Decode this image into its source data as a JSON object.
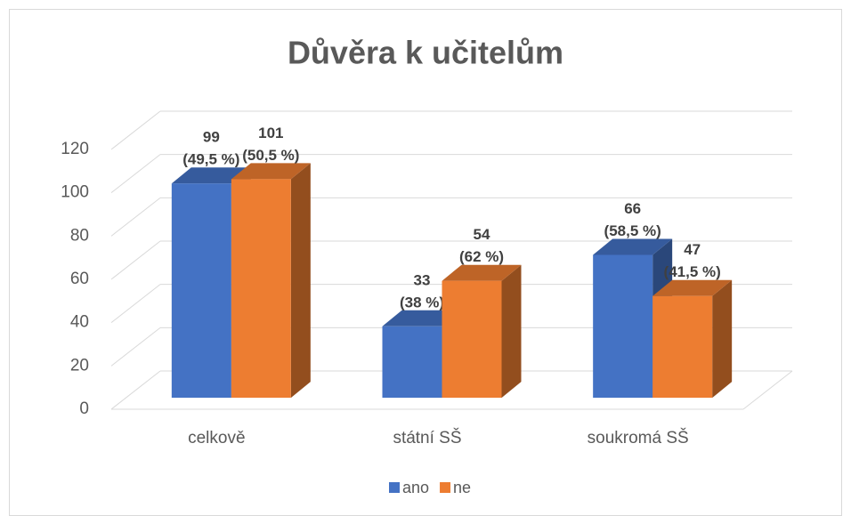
{
  "chart_data": {
    "type": "bar3d",
    "title": "Důvěra k učitelům",
    "categories": [
      "celkově",
      "státní SŠ",
      "soukromá SŠ"
    ],
    "series": [
      {
        "name": "ano",
        "color": "#4472c4",
        "values": [
          99,
          33,
          66
        ],
        "value_labels": [
          [
            "99",
            "(49,5 %)"
          ],
          [
            "33",
            "(38 %)"
          ],
          [
            "66",
            "(58,5 %)"
          ]
        ]
      },
      {
        "name": "ne",
        "color": "#ed7d31",
        "values": [
          101,
          54,
          47
        ],
        "value_labels": [
          [
            "101",
            "(50,5 %)"
          ],
          [
            "54",
            "(62 %)"
          ],
          [
            "47",
            "(41,5 %)"
          ]
        ]
      }
    ],
    "ylim": [
      0,
      120
    ],
    "yticks": [
      0,
      20,
      40,
      60,
      80,
      100,
      120
    ],
    "grid": true,
    "legend": "bottom"
  }
}
